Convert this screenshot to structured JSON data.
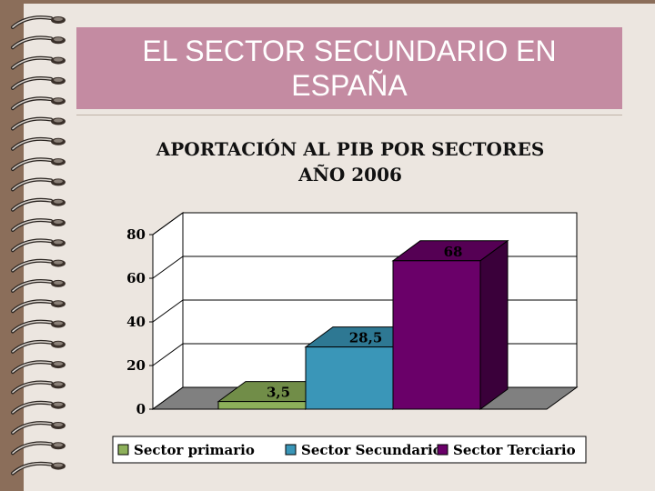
{
  "slide": {
    "title": "EL SECTOR SECUNDARIO EN ESPAÑA"
  },
  "colors": {
    "background": "#8b6e5a",
    "slide": "#ece6e0",
    "title_box": "#c48ba2",
    "floor": "#808080"
  },
  "chart_data": {
    "type": "bar",
    "title": "APORTACIÓN AL PIB POR SECTORES AÑO 2006",
    "categories": [
      ""
    ],
    "series": [
      {
        "name": "Sector primario",
        "value": 3.5,
        "label": "3,5",
        "color": "#8db05a"
      },
      {
        "name": "Sector Secundario",
        "value": 28.5,
        "label": "28,5",
        "color": "#3a96b8"
      },
      {
        "name": "Sector Terciario",
        "value": 68,
        "label": "68",
        "color": "#6a0069"
      }
    ],
    "ylim": [
      0,
      80
    ],
    "yticks": [
      "0",
      "20",
      "40",
      "60",
      "80"
    ],
    "grid": true,
    "legend": "bottom",
    "three_d": true
  }
}
